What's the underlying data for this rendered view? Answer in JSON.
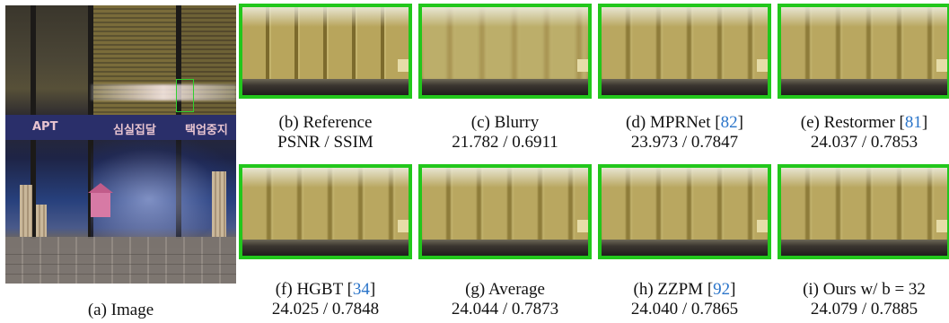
{
  "main_image": {
    "caption": "(a) Image",
    "sign_text": [
      "APT",
      "심실집달",
      "택업중지"
    ]
  },
  "panels": [
    {
      "id": "b",
      "caption": "(b) Reference",
      "ref": "",
      "metric": "PSNR / SSIM"
    },
    {
      "id": "c",
      "caption": "(c) Blurry",
      "ref": "",
      "metric": "21.782 / 0.6911"
    },
    {
      "id": "d",
      "caption": "(d) MPRNet [",
      "ref": "82",
      "metric": "23.973 / 0.7847"
    },
    {
      "id": "e",
      "caption": "(e) Restormer [",
      "ref": "81",
      "metric": "24.037 / 0.7853"
    },
    {
      "id": "f",
      "caption": "(f) HGBT [",
      "ref": "34",
      "metric": "24.025 / 0.7848"
    },
    {
      "id": "g",
      "caption": "(g) Average",
      "ref": "",
      "metric": "24.044 / 0.7873"
    },
    {
      "id": "h",
      "caption": "(h) ZZPM [",
      "ref": "92",
      "metric": "24.040 / 0.7865"
    },
    {
      "id": "i",
      "caption": "(i) Ours w/ b = 32",
      "ref": "",
      "metric": "24.079 / 0.7885"
    }
  ],
  "colors": {
    "highlight_border": "#22c71c",
    "citation": "#2a74c9"
  }
}
